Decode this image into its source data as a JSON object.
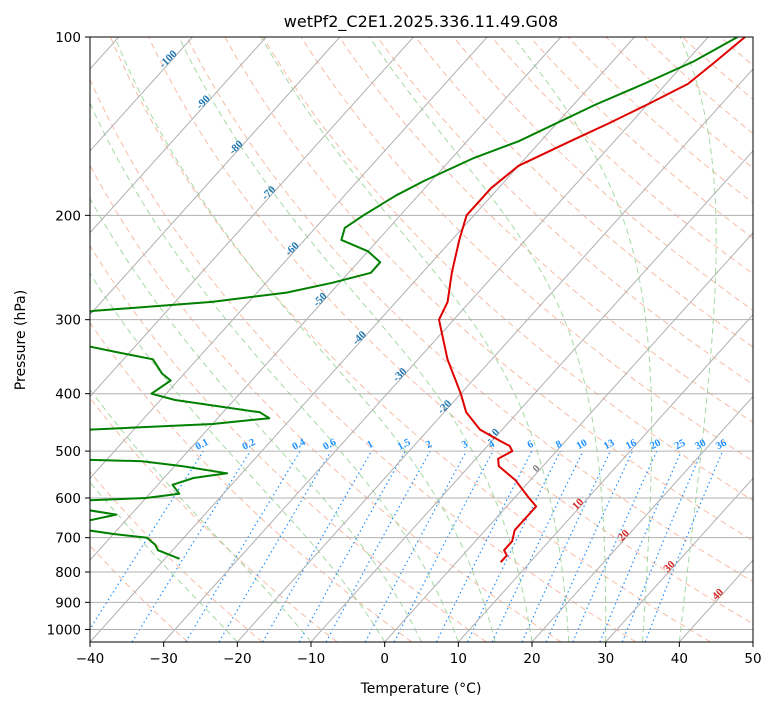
{
  "chart_data": {
    "type": "line",
    "title": "wetPf2_C2E1.2025.336.11.49.G08",
    "xlabel": "Temperature (°C)",
    "ylabel": "Pressure (hPa)",
    "xlim": [
      -40,
      50
    ],
    "ylim": [
      1050,
      100
    ],
    "y_scale": "log",
    "grid": true,
    "x_ticks": [
      "−40",
      "−30",
      "−20",
      "−10",
      "0",
      "10",
      "20",
      "30",
      "40",
      "50"
    ],
    "y_ticks": [
      "100",
      "200",
      "300",
      "400",
      "500",
      "600",
      "700",
      "800",
      "900",
      "1000"
    ],
    "series": [
      {
        "color": "#e00000",
        "points": [
          {
            "p": 100,
            "t": -25
          },
          {
            "p": 110,
            "t": -26
          },
          {
            "p": 120,
            "t": -27
          },
          {
            "p": 130,
            "t": -30
          },
          {
            "p": 140,
            "t": -33
          },
          {
            "p": 150,
            "t": -36
          },
          {
            "p": 165,
            "t": -40
          },
          {
            "p": 180,
            "t": -41
          },
          {
            "p": 200,
            "t": -41
          },
          {
            "p": 220,
            "t": -39
          },
          {
            "p": 250,
            "t": -36
          },
          {
            "p": 280,
            "t": -33
          },
          {
            "p": 300,
            "t": -32
          },
          {
            "p": 350,
            "t": -26
          },
          {
            "p": 400,
            "t": -20
          },
          {
            "p": 430,
            "t": -17
          },
          {
            "p": 460,
            "t": -13
          },
          {
            "p": 480,
            "t": -9
          },
          {
            "p": 490,
            "t": -7
          },
          {
            "p": 500,
            "t": -6
          },
          {
            "p": 515,
            "t": -7
          },
          {
            "p": 530,
            "t": -6
          },
          {
            "p": 560,
            "t": -2
          },
          {
            "p": 600,
            "t": 2
          },
          {
            "p": 620,
            "t": 4
          },
          {
            "p": 650,
            "t": 4
          },
          {
            "p": 680,
            "t": 4
          },
          {
            "p": 710,
            "t": 5
          },
          {
            "p": 735,
            "t": 5
          },
          {
            "p": 750,
            "t": 6
          },
          {
            "p": 770,
            "t": 6
          }
        ]
      },
      {
        "color": "#008000",
        "points": [
          {
            "p": 100,
            "t": -26
          },
          {
            "p": 110,
            "t": -29
          },
          {
            "p": 120,
            "t": -33
          },
          {
            "p": 130,
            "t": -37
          },
          {
            "p": 150,
            "t": -43
          },
          {
            "p": 160,
            "t": -47
          },
          {
            "p": 175,
            "t": -51
          },
          {
            "p": 185,
            "t": -53
          },
          {
            "p": 200,
            "t": -55
          },
          {
            "p": 210,
            "t": -56
          },
          {
            "p": 220,
            "t": -55
          },
          {
            "p": 230,
            "t": -50
          },
          {
            "p": 240,
            "t": -47
          },
          {
            "p": 250,
            "t": -47
          },
          {
            "p": 260,
            "t": -51
          },
          {
            "p": 270,
            "t": -56
          },
          {
            "p": 280,
            "t": -65
          },
          {
            "p": 290,
            "t": -80
          },
          {
            "p": 295,
            "t": -82
          },
          {
            "p": 300,
            "t": -80
          },
          {
            "p": 320,
            "t": -79
          },
          {
            "p": 330,
            "t": -78
          },
          {
            "p": 340,
            "t": -72
          },
          {
            "p": 350,
            "t": -66
          },
          {
            "p": 370,
            "t": -63
          },
          {
            "p": 380,
            "t": -61
          },
          {
            "p": 400,
            "t": -62
          },
          {
            "p": 410,
            "t": -58
          },
          {
            "p": 430,
            "t": -45
          },
          {
            "p": 440,
            "t": -43
          },
          {
            "p": 450,
            "t": -50
          },
          {
            "p": 470,
            "t": -82
          },
          {
            "p": 500,
            "t": -80
          },
          {
            "p": 510,
            "t": -82
          },
          {
            "p": 520,
            "t": -55
          },
          {
            "p": 530,
            "t": -49
          },
          {
            "p": 545,
            "t": -42
          },
          {
            "p": 555,
            "t": -46
          },
          {
            "p": 570,
            "t": -48
          },
          {
            "p": 590,
            "t": -46
          },
          {
            "p": 600,
            "t": -50
          },
          {
            "p": 610,
            "t": -64
          },
          {
            "p": 620,
            "t": -60
          },
          {
            "p": 640,
            "t": -52
          },
          {
            "p": 660,
            "t": -56
          },
          {
            "p": 670,
            "t": -58
          },
          {
            "p": 690,
            "t": -50
          },
          {
            "p": 700,
            "t": -45
          },
          {
            "p": 710,
            "t": -44
          },
          {
            "p": 720,
            "t": -43
          },
          {
            "p": 735,
            "t": -42
          },
          {
            "p": 760,
            "t": -38
          }
        ]
      }
    ],
    "background_lines": {
      "dry_adiabat_color": "#f4a080",
      "moist_adiabat_color": "#8fcf8f",
      "mixing_ratio_color": "#1e90ff",
      "mixing_ratio_labels": [
        "0.1",
        "0.2",
        "0.4",
        "0.6",
        "1",
        "1.5",
        "2",
        "3",
        "4",
        "6",
        "8",
        "10",
        "13",
        "16",
        "20",
        "25",
        "30",
        "36"
      ],
      "isotherm_labels_blue": [
        "-100",
        "-90",
        "-80",
        "-70",
        "-60",
        "-50",
        "-40",
        "-30",
        "-20",
        "-10"
      ],
      "isotherm_label_zero": "0",
      "isotherm_labels_red": [
        "10",
        "20",
        "30",
        "40"
      ],
      "isotherm_blue_color": "#1f77b4",
      "isotherm_red_color": "#d62728",
      "isotherm_zero_color": "#808080"
    }
  }
}
